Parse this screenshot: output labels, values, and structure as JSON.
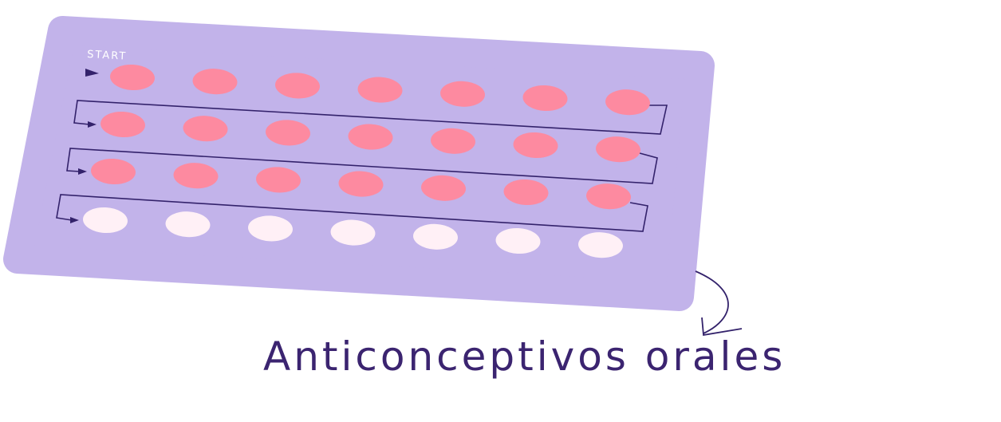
{
  "pill_pack": {
    "start_label": "START",
    "rows": [
      {
        "pills": [
          "active",
          "active",
          "active",
          "active",
          "active",
          "active",
          "active"
        ]
      },
      {
        "pills": [
          "active",
          "active",
          "active",
          "active",
          "active",
          "active",
          "active"
        ]
      },
      {
        "pills": [
          "active",
          "active",
          "active",
          "active",
          "active",
          "active",
          "active"
        ]
      },
      {
        "pills": [
          "placebo",
          "placebo",
          "placebo",
          "placebo",
          "placebo",
          "placebo",
          "placebo"
        ]
      }
    ]
  },
  "caption": "Anticonceptivos orales",
  "colors": {
    "card": "#c2b3ea",
    "active_pill": "#fd8aa0",
    "placebo_pill": "#fff0f6",
    "line": "#33226b",
    "caption": "#3b2470",
    "start_label": "#ffffff"
  }
}
